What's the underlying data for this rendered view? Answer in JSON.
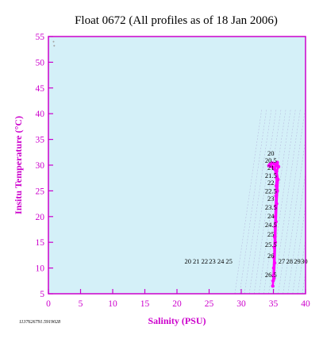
{
  "chart_data": {
    "type": "scatter",
    "title": "Float 0672  (All profiles as of 18 Jan 2006)",
    "xlabel": "Salinity (PSU)",
    "ylabel": "Insitu Temperature (°C)",
    "xlim": [
      0,
      40
    ],
    "ylim": [
      5,
      55
    ],
    "xticks": [
      "0",
      "5",
      "10",
      "15",
      "20",
      "25",
      "30",
      "35",
      "40"
    ],
    "yticks": [
      "5",
      "10",
      "15",
      "20",
      "25",
      "30",
      "35",
      "40",
      "45",
      "50",
      "55"
    ],
    "grid": false,
    "legend": "none",
    "colors": {
      "axis": "#cc00cc",
      "plot_background": "#d4f0f8",
      "data": "#ff00ff",
      "contours": "#b4b4dc",
      "outlier": "#a0a0a0"
    },
    "density_labels": [
      {
        "text": "20",
        "s": 34.6,
        "t": 32.3
      },
      {
        "text": "20.5",
        "s": 34.6,
        "t": 30.9
      },
      {
        "text": "21",
        "s": 34.6,
        "t": 29.5
      },
      {
        "text": "21.5",
        "s": 34.6,
        "t": 28.0
      },
      {
        "text": "22",
        "s": 34.6,
        "t": 26.6
      },
      {
        "text": "22.5",
        "s": 34.6,
        "t": 25.0
      },
      {
        "text": "23",
        "s": 34.6,
        "t": 23.5
      },
      {
        "text": "23.5",
        "s": 34.6,
        "t": 21.8
      },
      {
        "text": "24",
        "s": 34.6,
        "t": 20.1
      },
      {
        "text": "24.5",
        "s": 34.6,
        "t": 18.4
      },
      {
        "text": "25",
        "s": 34.6,
        "t": 16.6
      },
      {
        "text": "25.5",
        "s": 34.6,
        "t": 14.6
      },
      {
        "text": "26",
        "s": 34.6,
        "t": 12.4
      },
      {
        "text": "26.5",
        "s": 34.6,
        "t": 8.7
      },
      {
        "text": "20",
        "s": 21.7,
        "t": 11.3
      },
      {
        "text": "21",
        "s": 23.0,
        "t": 11.3
      },
      {
        "text": "22",
        "s": 24.3,
        "t": 11.3
      },
      {
        "text": "23",
        "s": 25.5,
        "t": 11.3
      },
      {
        "text": "24",
        "s": 26.8,
        "t": 11.3
      },
      {
        "text": "25",
        "s": 28.1,
        "t": 11.3
      },
      {
        "text": "27",
        "s": 36.3,
        "t": 11.3
      },
      {
        "text": "28",
        "s": 37.5,
        "t": 11.3
      },
      {
        "text": "29",
        "s": 38.7,
        "t": 11.3
      },
      {
        "text": "30",
        "s": 39.8,
        "t": 11.3
      }
    ],
    "series": [
      {
        "points": [
          {
            "x": 34.9,
            "y": 6.5
          },
          {
            "x": 34.95,
            "y": 7.5
          },
          {
            "x": 35.0,
            "y": 8.5
          },
          {
            "x": 35.05,
            "y": 10.0
          },
          {
            "x": 35.1,
            "y": 12.0
          },
          {
            "x": 35.15,
            "y": 14.0
          },
          {
            "x": 35.2,
            "y": 16.0
          },
          {
            "x": 35.25,
            "y": 18.0
          },
          {
            "x": 35.3,
            "y": 20.0
          },
          {
            "x": 35.35,
            "y": 22.0
          },
          {
            "x": 35.4,
            "y": 24.0
          },
          {
            "x": 35.45,
            "y": 26.0
          },
          {
            "x": 35.5,
            "y": 27.5
          },
          {
            "x": 35.4,
            "y": 28.5
          },
          {
            "x": 35.2,
            "y": 29.2
          },
          {
            "x": 34.9,
            "y": 29.6
          },
          {
            "x": 34.6,
            "y": 29.8
          },
          {
            "x": 34.3,
            "y": 29.9
          },
          {
            "x": 34.5,
            "y": 30.2
          },
          {
            "x": 34.8,
            "y": 30.4
          },
          {
            "x": 35.1,
            "y": 30.3
          },
          {
            "x": 35.4,
            "y": 29.8
          },
          {
            "x": 35.6,
            "y": 30.5
          },
          {
            "x": 35.8,
            "y": 29.7
          },
          {
            "x": 35.5,
            "y": 28.8
          },
          {
            "x": 35.7,
            "y": 27.2
          },
          {
            "x": 35.6,
            "y": 25.0
          },
          {
            "x": 35.5,
            "y": 22.5
          },
          {
            "x": 35.4,
            "y": 19.0
          },
          {
            "x": 35.3,
            "y": 15.0
          },
          {
            "x": 35.2,
            "y": 11.0
          },
          {
            "x": 35.1,
            "y": 8.0
          }
        ]
      }
    ],
    "outliers": [
      {
        "x": 0.8,
        "y": 54.0
      },
      {
        "x": 0.9,
        "y": 53.2
      }
    ]
  },
  "footer_stamp": "1137626791.5919028"
}
